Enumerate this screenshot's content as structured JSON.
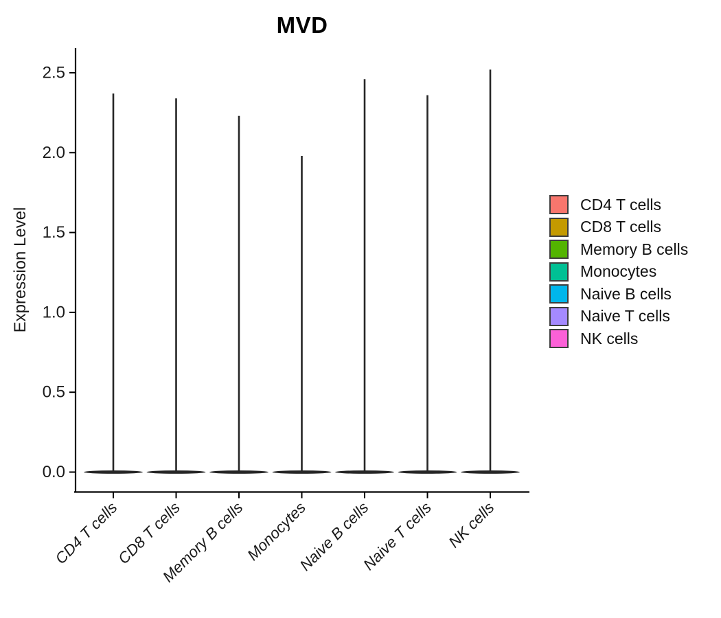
{
  "figure": {
    "background": "#FFFFFF"
  },
  "chart_data": {
    "type": "violin",
    "title": "MVD",
    "xlabel": "",
    "ylabel": "Expression Level",
    "categories": [
      "CD4 T cells",
      "CD8 T cells",
      "Memory B cells",
      "Monocytes",
      "Naive B cells",
      "Naive T cells",
      "NK cells"
    ],
    "series": [
      {
        "name": "violin_max_expression",
        "values": [
          2.37,
          2.34,
          2.23,
          1.98,
          2.46,
          2.36,
          2.52
        ]
      }
    ],
    "ylim": [
      0,
      2.6
    ],
    "yticks": [
      0,
      0.5,
      1,
      1.5,
      2,
      2.5
    ],
    "ytick_labels": [
      "0.0",
      "0.5",
      "1.0",
      "1.5",
      "2.0",
      "2.5"
    ],
    "grid": false,
    "legend_position": "right",
    "colors": [
      "#F8766D",
      "#C49A00",
      "#53B400",
      "#00C094",
      "#00B6EB",
      "#A58AFF",
      "#FB61D7"
    ],
    "violin_style": {
      "outline_color": "#262626",
      "shape": "thin vertical spike from 0 up to max value with a wide flat base at 0 (density concentrated at zero)"
    },
    "x_tick_label_angle": 45,
    "x_tick_label_italic": true
  },
  "legend": {
    "items": [
      {
        "label": "CD4 T cells",
        "color": "#F8766D"
      },
      {
        "label": "CD8 T cells",
        "color": "#C49A00"
      },
      {
        "label": "Memory B cells",
        "color": "#53B400"
      },
      {
        "label": "Monocytes",
        "color": "#00C094"
      },
      {
        "label": "Naive B cells",
        "color": "#00B6EB"
      },
      {
        "label": "Naive T cells",
        "color": "#A58AFF"
      },
      {
        "label": "NK cells",
        "color": "#FB61D7"
      }
    ],
    "swatch_border_color": "#3D3D3D"
  }
}
